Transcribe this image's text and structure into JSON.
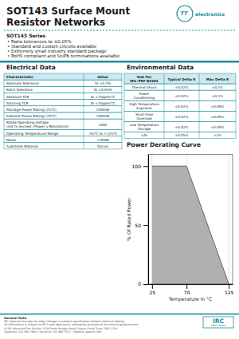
{
  "page": {
    "title": [
      "SOT143 Surface Mount",
      "Resistor Networks"
    ],
    "logo_top": [
      "TT",
      "electronics"
    ],
    "color": "#1a8fa0",
    "header_bg": "#cce8f0",
    "series_label": "SOT143 Series",
    "bullets": [
      "• Ratio tolerances to ±0.05%",
      "• Standard and custom circuits available",
      "• Extremely small industry standard package",
      "• RoHS compliant and Sn/Pb terminations available"
    ],
    "tables": [
      {
        "title": "Electrical Data",
        "headers": [
          "Characteristic",
          "Value"
        ],
        "rows": [
          [
            "Absolute Tolerance",
            "To ±0.1%"
          ],
          [
            "Ratio Tolerance",
            "To ±0.05%"
          ],
          [
            "Absolute TCR",
            "To ±25ppm/°C"
          ],
          [
            "Tracking TCR",
            "To ±25ppm/°C"
          ],
          [
            "Package Power Rating (25°C)",
            "250mW"
          ],
          [
            "Element Power Rating (70°C)",
            "100mW"
          ],
          [
            "Rated Operating Voltage\n(not to exceed √Power x Resistance)",
            "100V"
          ],
          [
            "Operating Temperature Range",
            "-55°C to +125°C"
          ],
          [
            "Noise",
            "±30dB"
          ],
          [
            "Substrate Material",
            "Silicon"
          ]
        ]
      },
      {
        "title": "Environmental Data",
        "headers": [
          "Test Per\nMIL-PRF-83401",
          "Typical Delta R",
          "Max Delta R"
        ],
        "rows": [
          [
            "Thermal Shock",
            "±0.02%",
            "±0.1%"
          ],
          [
            "Power\nConditioning",
            "±0.02%",
            "±0.1%"
          ],
          [
            "High Temperature\nExposure",
            "±0.02%",
            "±0.09%"
          ],
          [
            "Short-time\nOverload",
            "±0.02%",
            "±0.09%"
          ],
          [
            "Low Temperature\nStorage",
            "±0.02%",
            "±0.09%"
          ],
          [
            "Life",
            "±0.05%",
            "±2%"
          ]
        ]
      }
    ],
    "footer": {
      "title": "General Note",
      "note": "IRC reserves the right to make changes in product specification without notice or liability.\nAll information is subject to IRC's own data and is considered accurate at the time of going to print.",
      "company": "© IRC Advanced Film Division   1230 South Douglas Road, Corpus Christi Texas 78411-254\nTelephone: 361 992 7900 • Facsimile: 361 992 3311 • Website: www.irc.com",
      "logo": [
        "IRC",
        "electronics"
      ]
    }
  },
  "chart_data": {
    "type": "area",
    "title": "Power Derating Curve",
    "x": [
      25,
      70,
      125
    ],
    "values": [
      100,
      100,
      0
    ],
    "color": "#b0b0b0",
    "xlabel": "Temperature in °C",
    "ylabel": "% Of Rated Power",
    "xlim": [
      20,
      130
    ],
    "ylim": [
      0,
      110
    ],
    "xticks": [
      25,
      70,
      125
    ],
    "yticks": [
      0,
      50,
      100
    ],
    "grid": "x"
  }
}
